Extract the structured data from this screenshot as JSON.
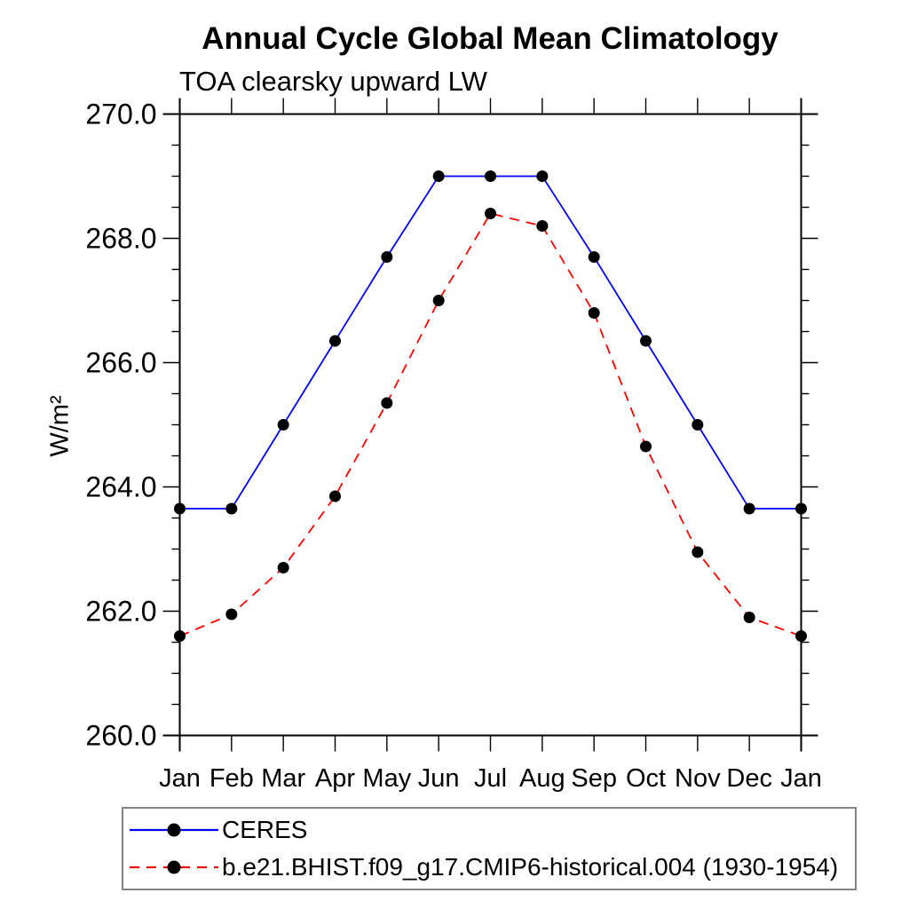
{
  "chart_data": {
    "type": "line",
    "title": "Annual Cycle Global Mean Climatology",
    "subtitle": "TOA clearsky upward LW",
    "ylabel": "W/m²",
    "x_categories": [
      "Jan",
      "Feb",
      "Mar",
      "Apr",
      "May",
      "Jun",
      "Jul",
      "Aug",
      "Sep",
      "Oct",
      "Nov",
      "Dec",
      "Jan"
    ],
    "ylim": [
      260.0,
      270.0
    ],
    "ytick_major_interval": 2.0,
    "ytick_minor_interval": 0.5,
    "ytick_label_format": "one-decimal",
    "grid": false,
    "legend_position": "bottom-left-boxed",
    "axis_color": "#000000",
    "marker_color": "#000000",
    "series": [
      {
        "name": "CERES",
        "color": "#0000ff",
        "line_style": "solid",
        "marker": "filled-circle",
        "values": [
          263.65,
          263.65,
          265.0,
          266.35,
          267.7,
          269.0,
          269.0,
          269.0,
          267.7,
          266.35,
          265.0,
          263.65,
          263.65
        ]
      },
      {
        "name": "b.e21.BHIST.f09_g17.CMIP6-historical.004 (1930-1954)",
        "color": "#ff0000",
        "line_style": "dashed",
        "marker": "filled-circle",
        "values": [
          261.6,
          261.95,
          262.7,
          263.85,
          265.35,
          267.0,
          268.4,
          268.2,
          266.8,
          264.65,
          262.95,
          261.9,
          261.6
        ]
      }
    ]
  }
}
